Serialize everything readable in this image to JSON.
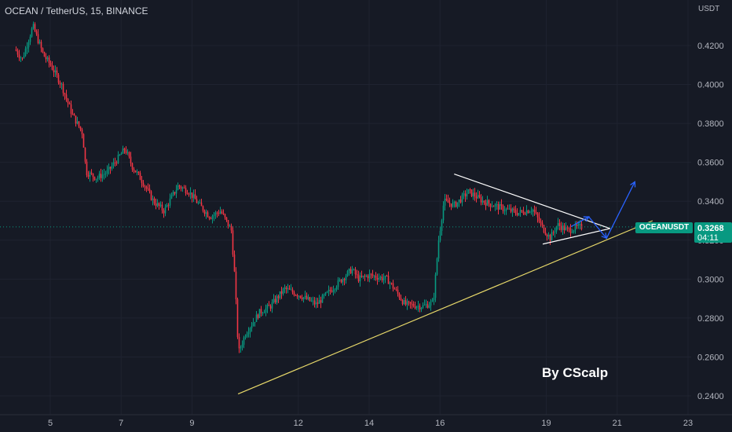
{
  "header": {
    "symbol_title": "OCEAN / TetherUS, 15, BINANCE",
    "currency": "USDT"
  },
  "watermark": {
    "text": "By CScalp"
  },
  "price_axis": {
    "ticks": [
      "0.4200",
      "0.4000",
      "0.3800",
      "0.3600",
      "0.3400",
      "0.3200",
      "0.3000",
      "0.2800",
      "0.2600",
      "0.2400"
    ]
  },
  "time_axis": {
    "ticks": [
      "5",
      "7",
      "9",
      "12",
      "14",
      "16",
      "19",
      "21",
      "23"
    ]
  },
  "last_price": {
    "symbol": "OCEANUSDT",
    "value": "0.3268",
    "countdown": "04:11"
  },
  "colors": {
    "background": "#161a25",
    "up": "#089981",
    "down": "#f23645",
    "trendline_support": "#e8d96a",
    "triangle": "#ffffff",
    "projection_arrow": "#2962ff",
    "grid": "#1f2330"
  },
  "chart_data": {
    "type": "candlestick",
    "symbol": "OCEAN / TetherUS",
    "interval": "15",
    "exchange": "BINANCE",
    "ylim": [
      0.235,
      0.435
    ],
    "y_ticks": [
      0.24,
      0.26,
      0.28,
      0.3,
      0.32,
      0.34,
      0.36,
      0.38,
      0.4,
      0.42
    ],
    "x_ticks": [
      5,
      7,
      9,
      12,
      14,
      16,
      19,
      21,
      23
    ],
    "close_path": [
      [
        4.0,
        0.418
      ],
      [
        4.2,
        0.413
      ],
      [
        4.5,
        0.43
      ],
      [
        4.8,
        0.415
      ],
      [
        5.0,
        0.41
      ],
      [
        5.3,
        0.4
      ],
      [
        5.6,
        0.385
      ],
      [
        5.9,
        0.375
      ],
      [
        6.0,
        0.355
      ],
      [
        6.3,
        0.352
      ],
      [
        6.6,
        0.355
      ],
      [
        6.9,
        0.362
      ],
      [
        7.1,
        0.367
      ],
      [
        7.3,
        0.358
      ],
      [
        7.6,
        0.35
      ],
      [
        7.9,
        0.34
      ],
      [
        8.2,
        0.335
      ],
      [
        8.6,
        0.348
      ],
      [
        8.9,
        0.345
      ],
      [
        9.2,
        0.338
      ],
      [
        9.5,
        0.332
      ],
      [
        9.8,
        0.335
      ],
      [
        10.1,
        0.325
      ],
      [
        10.2,
        0.3
      ],
      [
        10.3,
        0.262
      ],
      [
        10.5,
        0.272
      ],
      [
        10.9,
        0.283
      ],
      [
        11.2,
        0.286
      ],
      [
        11.6,
        0.295
      ],
      [
        12.0,
        0.292
      ],
      [
        12.5,
        0.287
      ],
      [
        13.0,
        0.296
      ],
      [
        13.5,
        0.305
      ],
      [
        13.7,
        0.3
      ],
      [
        14.0,
        0.302
      ],
      [
        14.5,
        0.3
      ],
      [
        14.7,
        0.295
      ],
      [
        15.0,
        0.287
      ],
      [
        15.5,
        0.286
      ],
      [
        15.8,
        0.288
      ],
      [
        15.95,
        0.32
      ],
      [
        16.1,
        0.34
      ],
      [
        16.4,
        0.338
      ],
      [
        16.8,
        0.345
      ],
      [
        17.2,
        0.34
      ],
      [
        17.5,
        0.338
      ],
      [
        17.8,
        0.336
      ],
      [
        18.2,
        0.334
      ],
      [
        18.6,
        0.336
      ],
      [
        18.9,
        0.326
      ],
      [
        19.1,
        0.321
      ],
      [
        19.3,
        0.328
      ],
      [
        19.6,
        0.325
      ],
      [
        19.9,
        0.3268
      ]
    ],
    "annotations": [
      {
        "type": "trendline",
        "name": "ascending support",
        "from": [
          10.3,
          0.241
        ],
        "to": [
          22.0,
          0.33
        ]
      },
      {
        "type": "trendline",
        "name": "triangle upper",
        "from": [
          16.4,
          0.354
        ],
        "to": [
          20.8,
          0.326
        ]
      },
      {
        "type": "trendline",
        "name": "triangle lower",
        "from": [
          18.9,
          0.318
        ],
        "to": [
          20.8,
          0.326
        ]
      },
      {
        "type": "arrow",
        "name": "projection",
        "points": [
          [
            19.7,
            0.327
          ],
          [
            20.2,
            0.332
          ],
          [
            20.7,
            0.321
          ],
          [
            21.5,
            0.35
          ]
        ]
      }
    ]
  }
}
